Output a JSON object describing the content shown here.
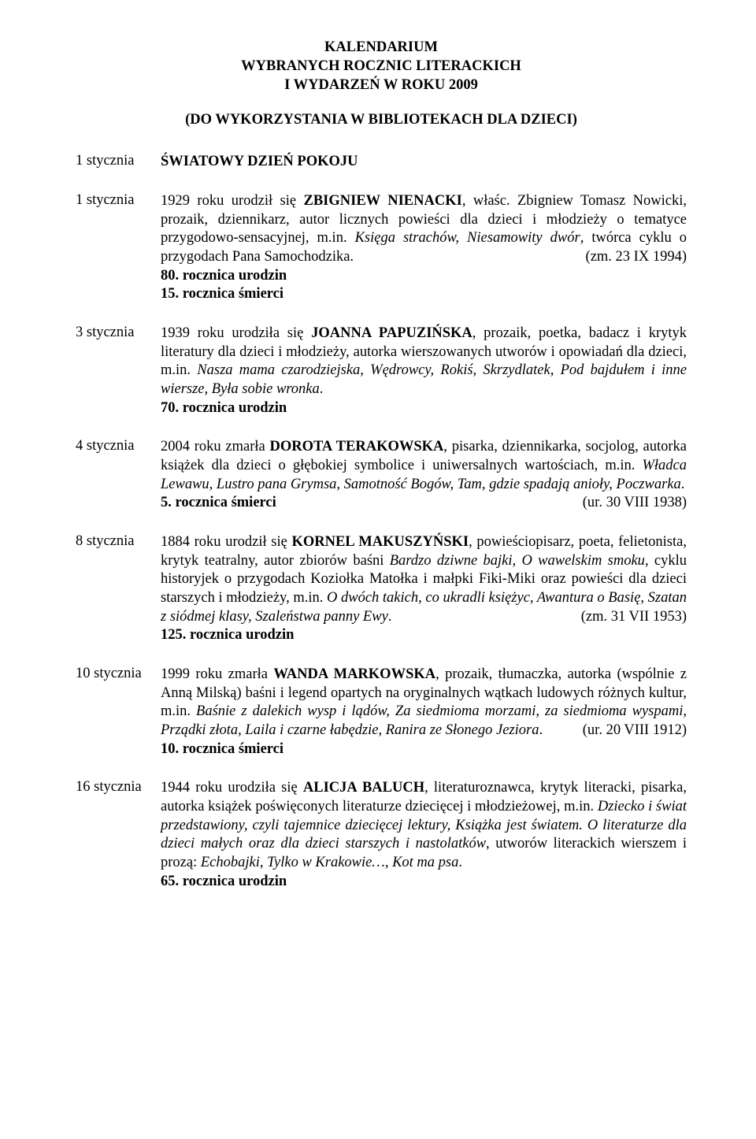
{
  "header": {
    "line1": "KALENDARIUM",
    "line2": "WYBRANYCH ROCZNIC LITERACKICH",
    "line3": "I WYDARZEŃ W ROKU 2009",
    "line4": "(DO WYKORZYSTANIA W BIBLIOTEKACH DLA DZIECI)"
  },
  "entries": [
    {
      "date": "1 stycznia",
      "body_html": "<span class=\"bold\">ŚWIATOWY DZIEŃ POKOJU</span>"
    },
    {
      "date": "1 stycznia",
      "body_html": "1929 roku urodził się <span class=\"bold\">ZBIGNIEW NIENACKI</span>, właśc. Zbigniew Tomasz Nowicki, prozaik, dziennikarz, autor licznych powieści dla dzieci i młodzieży o tematyce przygodowo-sensacyjnej, m.in. <span class=\"italic\">Księga strachów, Niesamowity dwór</span>, twórca cyklu o przygodach Pana Samochodzika. <span class=\"right-date\">(zm. 23 IX 1994)</span><br><span class=\"anniv\">80. rocznica urodzin</span><br><span class=\"anniv\">15. rocznica śmierci</span>"
    },
    {
      "date": "3 stycznia",
      "body_html": "1939 roku urodziła się <span class=\"bold\">JOANNA PAPUZIŃSKA</span>, prozaik, poetka, badacz i krytyk literatury dla dzieci i młodzieży, autorka wierszowanych utworów i opowiadań dla dzieci, m.in. <span class=\"italic\">Nasza mama czarodziejska, Wędrowcy, Rokiś, Skrzydlatek, Pod bajdułem i inne wiersze, Była sobie wronka</span>.<br><span class=\"anniv\">70. rocznica urodzin</span>"
    },
    {
      "date": "4 stycznia",
      "body_html": "2004 roku zmarła <span class=\"bold\">DOROTA TERAKOWSKA</span>, pisarka, dziennikarka, socjolog, autorka książek dla dzieci o głębokiej symbolice i uniwersalnych wartościach, m.in. <span class=\"italic\">Władca Lewawu, Lustro pana Grymsa, Samotność Bogów, Tam, gdzie spadają anioły, Poczwarka</span>. <span class=\"right-date\">(ur. 30 VIII 1938)</span><br><span class=\"anniv\">5. rocznica śmierci</span>"
    },
    {
      "date": "8 stycznia",
      "body_html": "1884 roku urodził się <span class=\"bold\">KORNEL MAKUSZYŃSKI</span>, powieściopisarz, poeta, felietonista, krytyk teatralny, autor zbiorów baśni <span class=\"italic\">Bardzo dziwne bajki, O wawelskim smoku</span>, cyklu historyjek o przygodach Koziołka Matołka i małpki Fiki-Miki oraz powieści dla dzieci starszych i młodzieży, m.in. <span class=\"italic\">O dwóch takich, co ukradli księżyc, Awantura o Basię, Szatan z siódmej klasy, Szaleństwa panny Ewy</span>. <span class=\"right-date\">(zm. 31 VII 1953)</span><br><span class=\"anniv\">125. rocznica urodzin</span>"
    },
    {
      "date": "10 stycznia",
      "body_html": "1999 roku zmarła <span class=\"bold\">WANDA MARKOWSKA</span>, prozaik, tłumaczka, autorka (wspólnie z Anną Milską) baśni i legend opartych na oryginalnych wątkach ludowych różnych kultur, m.in. <span class=\"italic\">Baśnie z dalekich wysp i lądów, Za siedmioma morzami, za siedmioma wyspami, Prządki złota, Laila i czarne łabędzie, Ranira ze Słonego Jeziora</span>. <span class=\"right-date\">(ur. 20 VIII 1912)</span><br><span class=\"anniv\">10. rocznica śmierci</span>"
    },
    {
      "date": "16 stycznia",
      "body_html": "1944 roku urodziła się <span class=\"bold\">ALICJA BALUCH</span>, literaturoznawca, krytyk literacki, pisarka, autorka książek poświęconych literaturze dziecięcej i młodzieżowej, m.in. <span class=\"italic\">Dziecko i świat przedstawiony, czyli tajemnice dziecięcej lektury, Książka jest światem. O literaturze dla dzieci małych oraz dla dzieci starszych i nastolatków</span>, utworów literackich wierszem i prozą: <span class=\"italic\">Echobajki, Tylko w Krakowie…, Kot ma psa</span>.<br><span class=\"anniv\">65. rocznica urodzin</span>"
    }
  ]
}
